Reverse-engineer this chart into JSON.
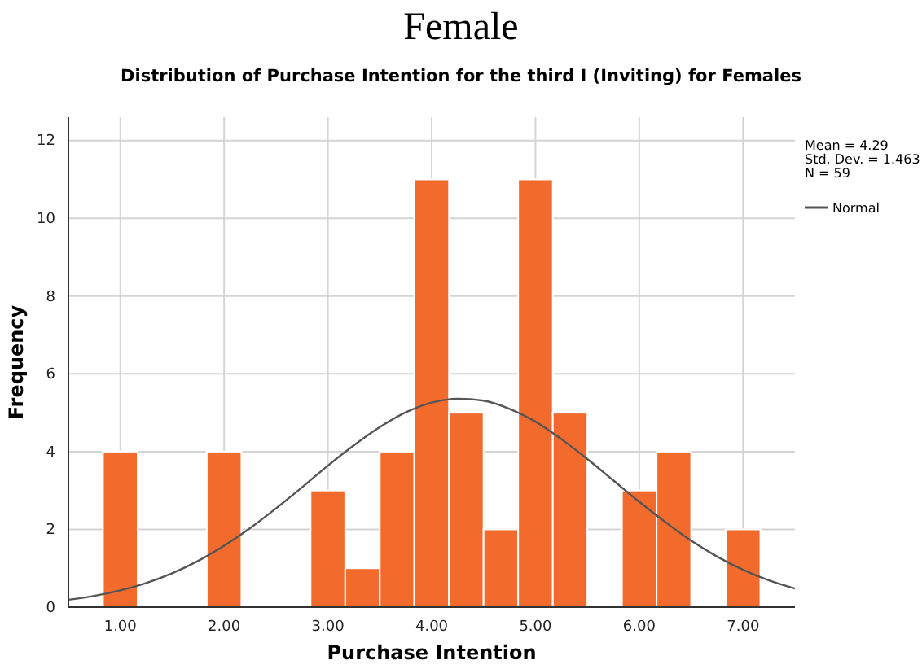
{
  "chart_data": {
    "type": "histogram",
    "title": "Female",
    "subtitle": "Distribution of Purchase Intention for the third I (Inviting) for Females",
    "xlabel": "Purchase Intention",
    "ylabel": "Frequency",
    "bins": [
      0.833,
      1.167,
      1.5,
      1.833,
      2.167,
      2.5,
      2.833,
      3.167,
      3.5,
      3.833,
      4.167,
      4.5,
      4.833,
      5.167,
      5.5,
      5.833,
      6.167,
      6.5,
      6.833,
      7.167
    ],
    "series": [
      {
        "type": "histogram",
        "color": "#f26b2c",
        "values": [
          4,
          0,
          0,
          4,
          0,
          0,
          3,
          1,
          4,
          11,
          5,
          2,
          11,
          5,
          0,
          3,
          4,
          0,
          2
        ]
      },
      {
        "type": "line",
        "name": "Normal",
        "color": "#555555",
        "x": [
          0.5,
          0.75,
          1,
          1.25,
          1.5,
          1.75,
          2,
          2.25,
          2.5,
          2.75,
          3,
          3.25,
          3.5,
          3.75,
          4,
          4.25,
          4.5,
          4.75,
          5,
          5.25,
          5.5,
          5.75,
          6,
          6.25,
          6.5,
          6.75,
          7,
          7.25,
          7.5
        ],
        "values": [
          0.19,
          0.29,
          0.43,
          0.62,
          0.87,
          1.19,
          1.58,
          2.03,
          2.54,
          3.08,
          3.64,
          4.16,
          4.63,
          5.01,
          5.26,
          5.36,
          5.31,
          5.1,
          4.77,
          4.32,
          3.81,
          3.26,
          2.71,
          2.19,
          1.71,
          1.3,
          0.96,
          0.69,
          0.48
        ]
      }
    ],
    "xlim": [
      0.5,
      7.5
    ],
    "xticks": [
      {
        "value": 1,
        "label": "1.00"
      },
      {
        "value": 2,
        "label": "2.00"
      },
      {
        "value": 3,
        "label": "3.00"
      },
      {
        "value": 4,
        "label": "4.00"
      },
      {
        "value": 5,
        "label": "5.00"
      },
      {
        "value": 6,
        "label": "6.00"
      },
      {
        "value": 7,
        "label": "7.00"
      }
    ],
    "ylim": [
      0,
      12.6
    ],
    "yticks": [
      0,
      2,
      4,
      6,
      8,
      10,
      12
    ],
    "grid": true,
    "legend": "top right",
    "annotations": [
      "Mean = 4.29",
      "Std. Dev. = 1.463",
      "N = 59"
    ]
  }
}
